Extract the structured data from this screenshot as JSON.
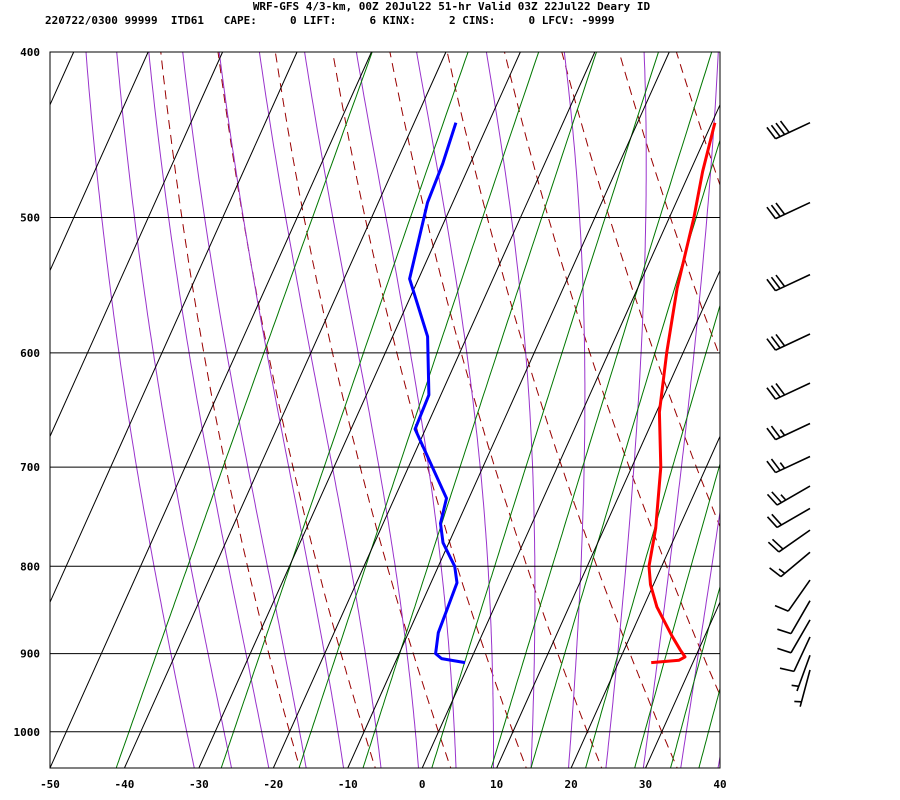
{
  "header": {
    "title": "WRF-GFS 4/3-km, 00Z 20Jul22 51-hr Valid 03Z 22Jul22 Deary ID",
    "id_line": "220722/0300 99999  ITD61   CAPE:     0 LIFT:     6 KINX:     2 CINS:     0 LFCV: -9999"
  },
  "chart_data": {
    "type": "line",
    "diagram": "skew-T log-P",
    "x_axis": {
      "unit": "°C",
      "range": [
        -50,
        40
      ],
      "ticks": [
        "-50",
        "-40",
        "-30",
        "-20",
        "-10",
        "0",
        "10",
        "20",
        "30",
        "40"
      ]
    },
    "y_axis": {
      "unit": "hPa",
      "scale": "log",
      "range": [
        1050,
        400
      ],
      "ticks": [
        "400",
        "500",
        "600",
        "700",
        "800",
        "900",
        "1000"
      ]
    },
    "grid": true,
    "series": [
      {
        "role": "temperature",
        "color": "#ff0000",
        "points": [
          {
            "p": 911,
            "t": 24.4
          },
          {
            "p": 908,
            "t": 28.0
          },
          {
            "p": 904,
            "t": 28.6
          },
          {
            "p": 896,
            "t": 27.6
          },
          {
            "p": 878,
            "t": 25.5
          },
          {
            "p": 845,
            "t": 21.8
          },
          {
            "p": 820,
            "t": 19.6
          },
          {
            "p": 800,
            "t": 18.3
          },
          {
            "p": 760,
            "t": 16.9
          },
          {
            "p": 700,
            "t": 13.9
          },
          {
            "p": 650,
            "t": 10.4
          },
          {
            "p": 600,
            "t": 7.8
          },
          {
            "p": 550,
            "t": 5.3
          },
          {
            "p": 500,
            "t": 3.3
          },
          {
            "p": 470,
            "t": 1.7
          },
          {
            "p": 440,
            "t": 0.4
          }
        ]
      },
      {
        "role": "dewpoint",
        "color": "#0000ff",
        "points": [
          {
            "p": 911,
            "t": -0.6
          },
          {
            "p": 906,
            "t": -4.0
          },
          {
            "p": 900,
            "t": -5.1
          },
          {
            "p": 875,
            "t": -6.0
          },
          {
            "p": 840,
            "t": -6.3
          },
          {
            "p": 818,
            "t": -6.5
          },
          {
            "p": 800,
            "t": -7.8
          },
          {
            "p": 775,
            "t": -10.8
          },
          {
            "p": 755,
            "t": -12.3
          },
          {
            "p": 730,
            "t": -13.0
          },
          {
            "p": 665,
            "t": -21.4
          },
          {
            "p": 635,
            "t": -21.6
          },
          {
            "p": 587,
            "t": -25.3
          },
          {
            "p": 543,
            "t": -31.2
          },
          {
            "p": 490,
            "t": -33.4
          },
          {
            "p": 465,
            "t": -33.7
          },
          {
            "p": 440,
            "t": -34.4
          }
        ]
      }
    ],
    "wind_barbs": [
      {
        "p": 440,
        "dir": 245,
        "spd": 40
      },
      {
        "p": 490,
        "dir": 245,
        "spd": 30
      },
      {
        "p": 540,
        "dir": 245,
        "spd": 30
      },
      {
        "p": 585,
        "dir": 245,
        "spd": 30
      },
      {
        "p": 625,
        "dir": 245,
        "spd": 30
      },
      {
        "p": 660,
        "dir": 245,
        "spd": 25
      },
      {
        "p": 690,
        "dir": 245,
        "spd": 25
      },
      {
        "p": 718,
        "dir": 240,
        "spd": 25
      },
      {
        "p": 740,
        "dir": 240,
        "spd": 20
      },
      {
        "p": 762,
        "dir": 235,
        "spd": 20
      },
      {
        "p": 785,
        "dir": 230,
        "spd": 15
      },
      {
        "p": 815,
        "dir": 215,
        "spd": 10
      },
      {
        "p": 838,
        "dir": 210,
        "spd": 10
      },
      {
        "p": 860,
        "dir": 210,
        "spd": 10
      },
      {
        "p": 880,
        "dir": 205,
        "spd": 10
      },
      {
        "p": 902,
        "dir": 200,
        "spd": 5
      },
      {
        "p": 920,
        "dir": 195,
        "spd": 5
      }
    ],
    "styles": {
      "isotherm_color": "#000000",
      "dry_adiabat_color": "#990000",
      "moist_adiabat_color": "#9933cc",
      "mixing_ratio_color": "#007700"
    }
  }
}
